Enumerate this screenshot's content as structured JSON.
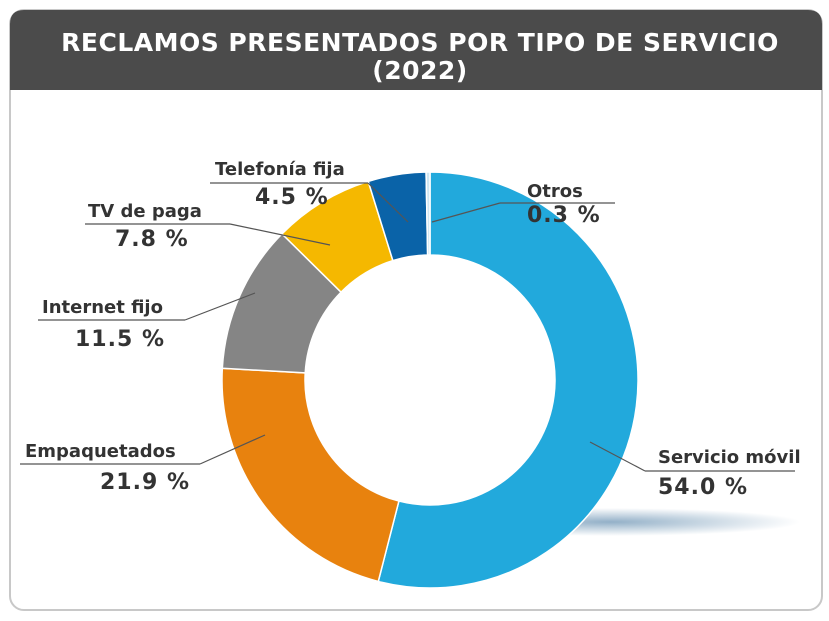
{
  "chart_data": {
    "type": "donut",
    "title": "RECLAMOS PRESENTADOS POR TIPO DE SERVICIO",
    "subtitle": "(2022)",
    "categories": [
      "Servicio móvil",
      "Empaquetados",
      "Internet fijo",
      "TV de paga",
      "Telefonía fija",
      "Otros"
    ],
    "values": [
      54.0,
      21.9,
      11.5,
      7.8,
      4.5,
      0.3
    ],
    "value_labels": [
      "54.0 %",
      "21.9 %",
      "11.5 %",
      "7.8 %",
      "4.5 %",
      "0.3 %"
    ],
    "colors": [
      "#22a9dc",
      "#e8820e",
      "#858585",
      "#f5b800",
      "#0a63a8",
      "#cfe6f2"
    ]
  }
}
